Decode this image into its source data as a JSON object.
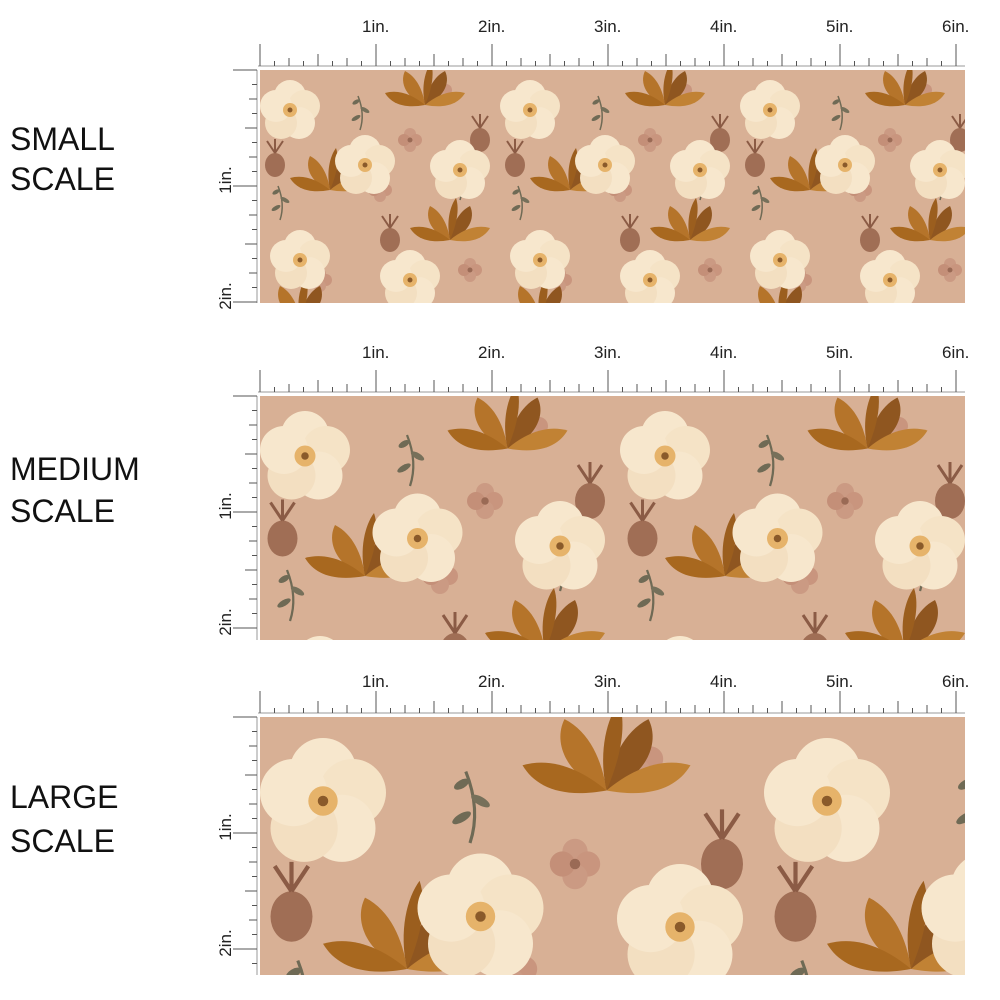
{
  "panels": [
    {
      "label_lines": [
        "SMALL",
        "SCALE"
      ],
      "ruler_x": [
        "1in.",
        "2in.",
        "3in.",
        "4in.",
        "5in.",
        "6in."
      ],
      "ruler_y": [
        "1in.",
        "2in."
      ]
    },
    {
      "label_lines": [
        "MEDIUM",
        "SCALE"
      ],
      "ruler_x": [
        "1in.",
        "2in.",
        "3in.",
        "4in.",
        "5in.",
        "6in."
      ],
      "ruler_y": [
        "1in.",
        "2in."
      ]
    },
    {
      "label_lines": [
        "LARGE",
        "SCALE"
      ],
      "ruler_x": [
        "1in.",
        "2in.",
        "3in.",
        "4in.",
        "5in.",
        "6in."
      ],
      "ruler_y": [
        "1in.",
        "2in."
      ]
    }
  ]
}
